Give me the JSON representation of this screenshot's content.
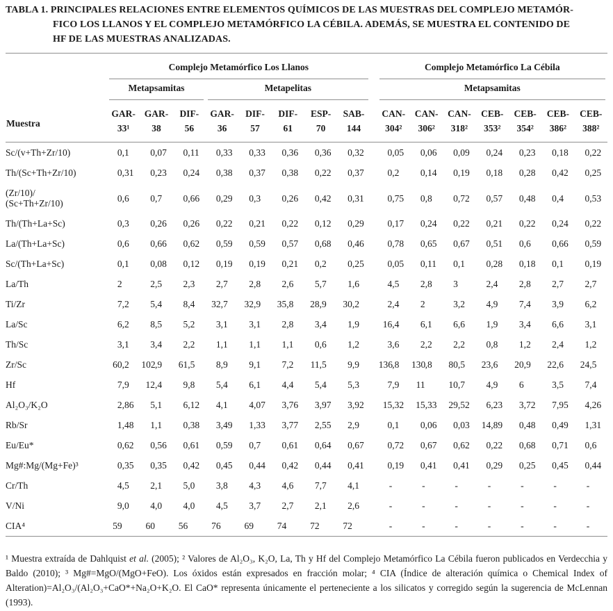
{
  "title_lines": [
    "TABLA 1. PRINCIPALES RELACIONES ENTRE ELEMENTOS QUÍMICOS DE LAS MUESTRAS DEL COMPLEJO METAMÓR-",
    "FICO LOS LLANOS Y EL COMPLEJO METAMÓRFICO LA CÉBILA. ADEMÁS, SE MUESTRA EL CONTENIDO DE",
    "HF DE LAS MUESTRAS ANALIZADAS."
  ],
  "table": {
    "muestra_label": "Muestra",
    "groups": [
      {
        "label": "Complejo Metamórfico Los Llanos",
        "span": 8
      },
      {
        "label": "Complejo Metamórfico La Cébila",
        "span": 7
      }
    ],
    "subgroups": [
      {
        "label": "Metapsamitas",
        "span": 3
      },
      {
        "label": "Metapelitas",
        "span": 5
      },
      {
        "label": "Metapsamitas",
        "span": 7
      }
    ],
    "gap_after_column": 8,
    "columns": [
      "GAR-\n33¹",
      "GAR-\n38",
      "DIF-\n56",
      "GAR-\n36",
      "DIF-\n57",
      "DIF-\n61",
      "ESP-\n70",
      "SAB-\n144",
      "CAN-\n304²",
      "CAN-\n306²",
      "CAN-\n318²",
      "CEB-\n353²",
      "CEB-\n354²",
      "CEB-\n386²",
      "CEB-\n388²"
    ],
    "rows": [
      {
        "label": "Sc/(v+Th+Zr/10)",
        "values": [
          "0,1",
          "0,07",
          "0,11",
          "0,33",
          "0,33",
          "0,36",
          "0,36",
          "0,32",
          "0,05",
          "0,06",
          "0,09",
          "0,24",
          "0,23",
          "0,18",
          "0,22"
        ]
      },
      {
        "label": "Th/(Sc+Th+Zr/10)",
        "values": [
          "0,31",
          "0,23",
          "0,24",
          "0,38",
          "0,37",
          "0,38",
          "0,22",
          "0,37",
          "0,2",
          "0,14",
          "0,19",
          "0,18",
          "0,28",
          "0,42",
          "0,25"
        ]
      },
      {
        "label": "(Zr/10)/\n(Sc+Th+Zr/10)",
        "values": [
          "0,6",
          "0,7",
          "0,66",
          "0,29",
          "0,3",
          "0,26",
          "0,42",
          "0,31",
          "0,75",
          "0,8",
          "0,72",
          "0,57",
          "0,48",
          "0,4",
          "0,53"
        ]
      },
      {
        "label": "Th/(Th+La+Sc)",
        "values": [
          "0,3",
          "0,26",
          "0,26",
          "0,22",
          "0,21",
          "0,22",
          "0,12",
          "0,29",
          "0,17",
          "0,24",
          "0,22",
          "0,21",
          "0,22",
          "0,24",
          "0,22"
        ]
      },
      {
        "label": "La/(Th+La+Sc)",
        "values": [
          "0,6",
          "0,66",
          "0,62",
          "0,59",
          "0,59",
          "0,57",
          "0,68",
          "0,46",
          "0,78",
          "0,65",
          "0,67",
          "0,51",
          "0,6",
          "0,66",
          "0,59"
        ]
      },
      {
        "label": "Sc/(Th+La+Sc)",
        "values": [
          "0,1",
          "0,08",
          "0,12",
          "0,19",
          "0,19",
          "0,21",
          "0,2",
          "0,25",
          "0,05",
          "0,11",
          "0,1",
          "0,28",
          "0,18",
          "0,1",
          "0,19"
        ]
      },
      {
        "label": "La/Th",
        "values": [
          "2",
          "2,5",
          "2,3",
          "2,7",
          "2,8",
          "2,6",
          "5,7",
          "1,6",
          "4,5",
          "2,8",
          "3",
          "2,4",
          "2,8",
          "2,7",
          "2,7"
        ]
      },
      {
        "label": "Ti/Zr",
        "values": [
          "7,2",
          "5,4",
          "8,4",
          "32,7",
          "32,9",
          "35,8",
          "28,9",
          "30,2",
          "2,4",
          "2",
          "3,2",
          "4,9",
          "7,4",
          "3,9",
          "6,2"
        ]
      },
      {
        "label": "La/Sc",
        "values": [
          "6,2",
          "8,5",
          "5,2",
          "3,1",
          "3,1",
          "2,8",
          "3,4",
          "1,9",
          "16,4",
          "6,1",
          "6,6",
          "1,9",
          "3,4",
          "6,6",
          "3,1"
        ]
      },
      {
        "label": "Th/Sc",
        "values": [
          "3,1",
          "3,4",
          "2,2",
          "1,1",
          "1,1",
          "1,1",
          "0,6",
          "1,2",
          "3,6",
          "2,2",
          "2,2",
          "0,8",
          "1,2",
          "2,4",
          "1,2"
        ]
      },
      {
        "label": "Zr/Sc",
        "values": [
          "60,2",
          "102,9",
          "61,5",
          "8,9",
          "9,1",
          "7,2",
          "11,5",
          "9,9",
          "136,8",
          "130,8",
          "80,5",
          "23,6",
          "20,9",
          "22,6",
          "24,5"
        ]
      },
      {
        "label": "Hf",
        "values": [
          "7,9",
          "12,4",
          "9,8",
          "5,4",
          "6,1",
          "4,4",
          "5,4",
          "5,3",
          "7,9",
          "11",
          "10,7",
          "4,9",
          "6",
          "3,5",
          "7,4"
        ]
      },
      {
        "label": "Al₂O₃/K₂O",
        "values": [
          "2,86",
          "5,1",
          "6,12",
          "4,1",
          "4,07",
          "3,76",
          "3,97",
          "3,92",
          "15,32",
          "15,33",
          "29,52",
          "6,23",
          "3,72",
          "7,95",
          "4,26"
        ]
      },
      {
        "label": "Rb/Sr",
        "values": [
          "1,48",
          "1,1",
          "0,38",
          "3,49",
          "1,33",
          "3,77",
          "2,55",
          "2,9",
          "0,1",
          "0,06",
          "0,03",
          "14,89",
          "0,48",
          "0,49",
          "1,31"
        ]
      },
      {
        "label": "Eu/Eu*",
        "values": [
          "0,62",
          "0,56",
          "0,61",
          "0,59",
          "0,7",
          "0,61",
          "0,64",
          "0,67",
          "0,72",
          "0,67",
          "0,62",
          "0,22",
          "0,68",
          "0,71",
          "0,6"
        ]
      },
      {
        "label": "Mg#:Mg/(Mg+Fe)³",
        "values": [
          "0,35",
          "0,35",
          "0,42",
          "0,45",
          "0,44",
          "0,42",
          "0,44",
          "0,41",
          "0,19",
          "0,41",
          "0,41",
          "0,29",
          "0,25",
          "0,45",
          "0,44"
        ]
      },
      {
        "label": "Cr/Th",
        "values": [
          "4,5",
          "2,1",
          "5,0",
          "3,8",
          "4,3",
          "4,6",
          "7,7",
          "4,1",
          "-",
          "-",
          "-",
          "-",
          "-",
          "-",
          "-"
        ]
      },
      {
        "label": "V/Ni",
        "values": [
          "9,0",
          "4,0",
          "4,0",
          "4,5",
          "3,7",
          "2,7",
          "2,1",
          "2,6",
          "-",
          "-",
          "-",
          "-",
          "-",
          "-",
          "-"
        ]
      },
      {
        "label": "CIA⁴",
        "values": [
          "59",
          "60",
          "56",
          "76",
          "69",
          "74",
          "72",
          "72",
          "-",
          "-",
          "-",
          "-",
          "-",
          "-",
          "-"
        ]
      }
    ]
  },
  "footnote": {
    "segments": [
      {
        "text": "¹ Muestra extraída de Dahlquist "
      },
      {
        "text": "et al.",
        "italic": true
      },
      {
        "text": " (2005); ² Valores de Al₂O₃, K₂O, La, Th y Hf del Complejo Metamórfico La Cébila fueron publicados en Verdecchia y Baldo (2010); ³ Mg#=MgO/(MgO+FeO). Los óxidos están expresados en fracción molar; ⁴ CIA (Índice de alteración química o Chemical Index of Alteration)=Al₂O₃/(Al₂O₃+CaO*+Na₂O+K₂O. El CaO* representa únicamente el perteneciente a los silicatos y corregido según la sugerencia de McLennan (1993)."
      }
    ]
  }
}
